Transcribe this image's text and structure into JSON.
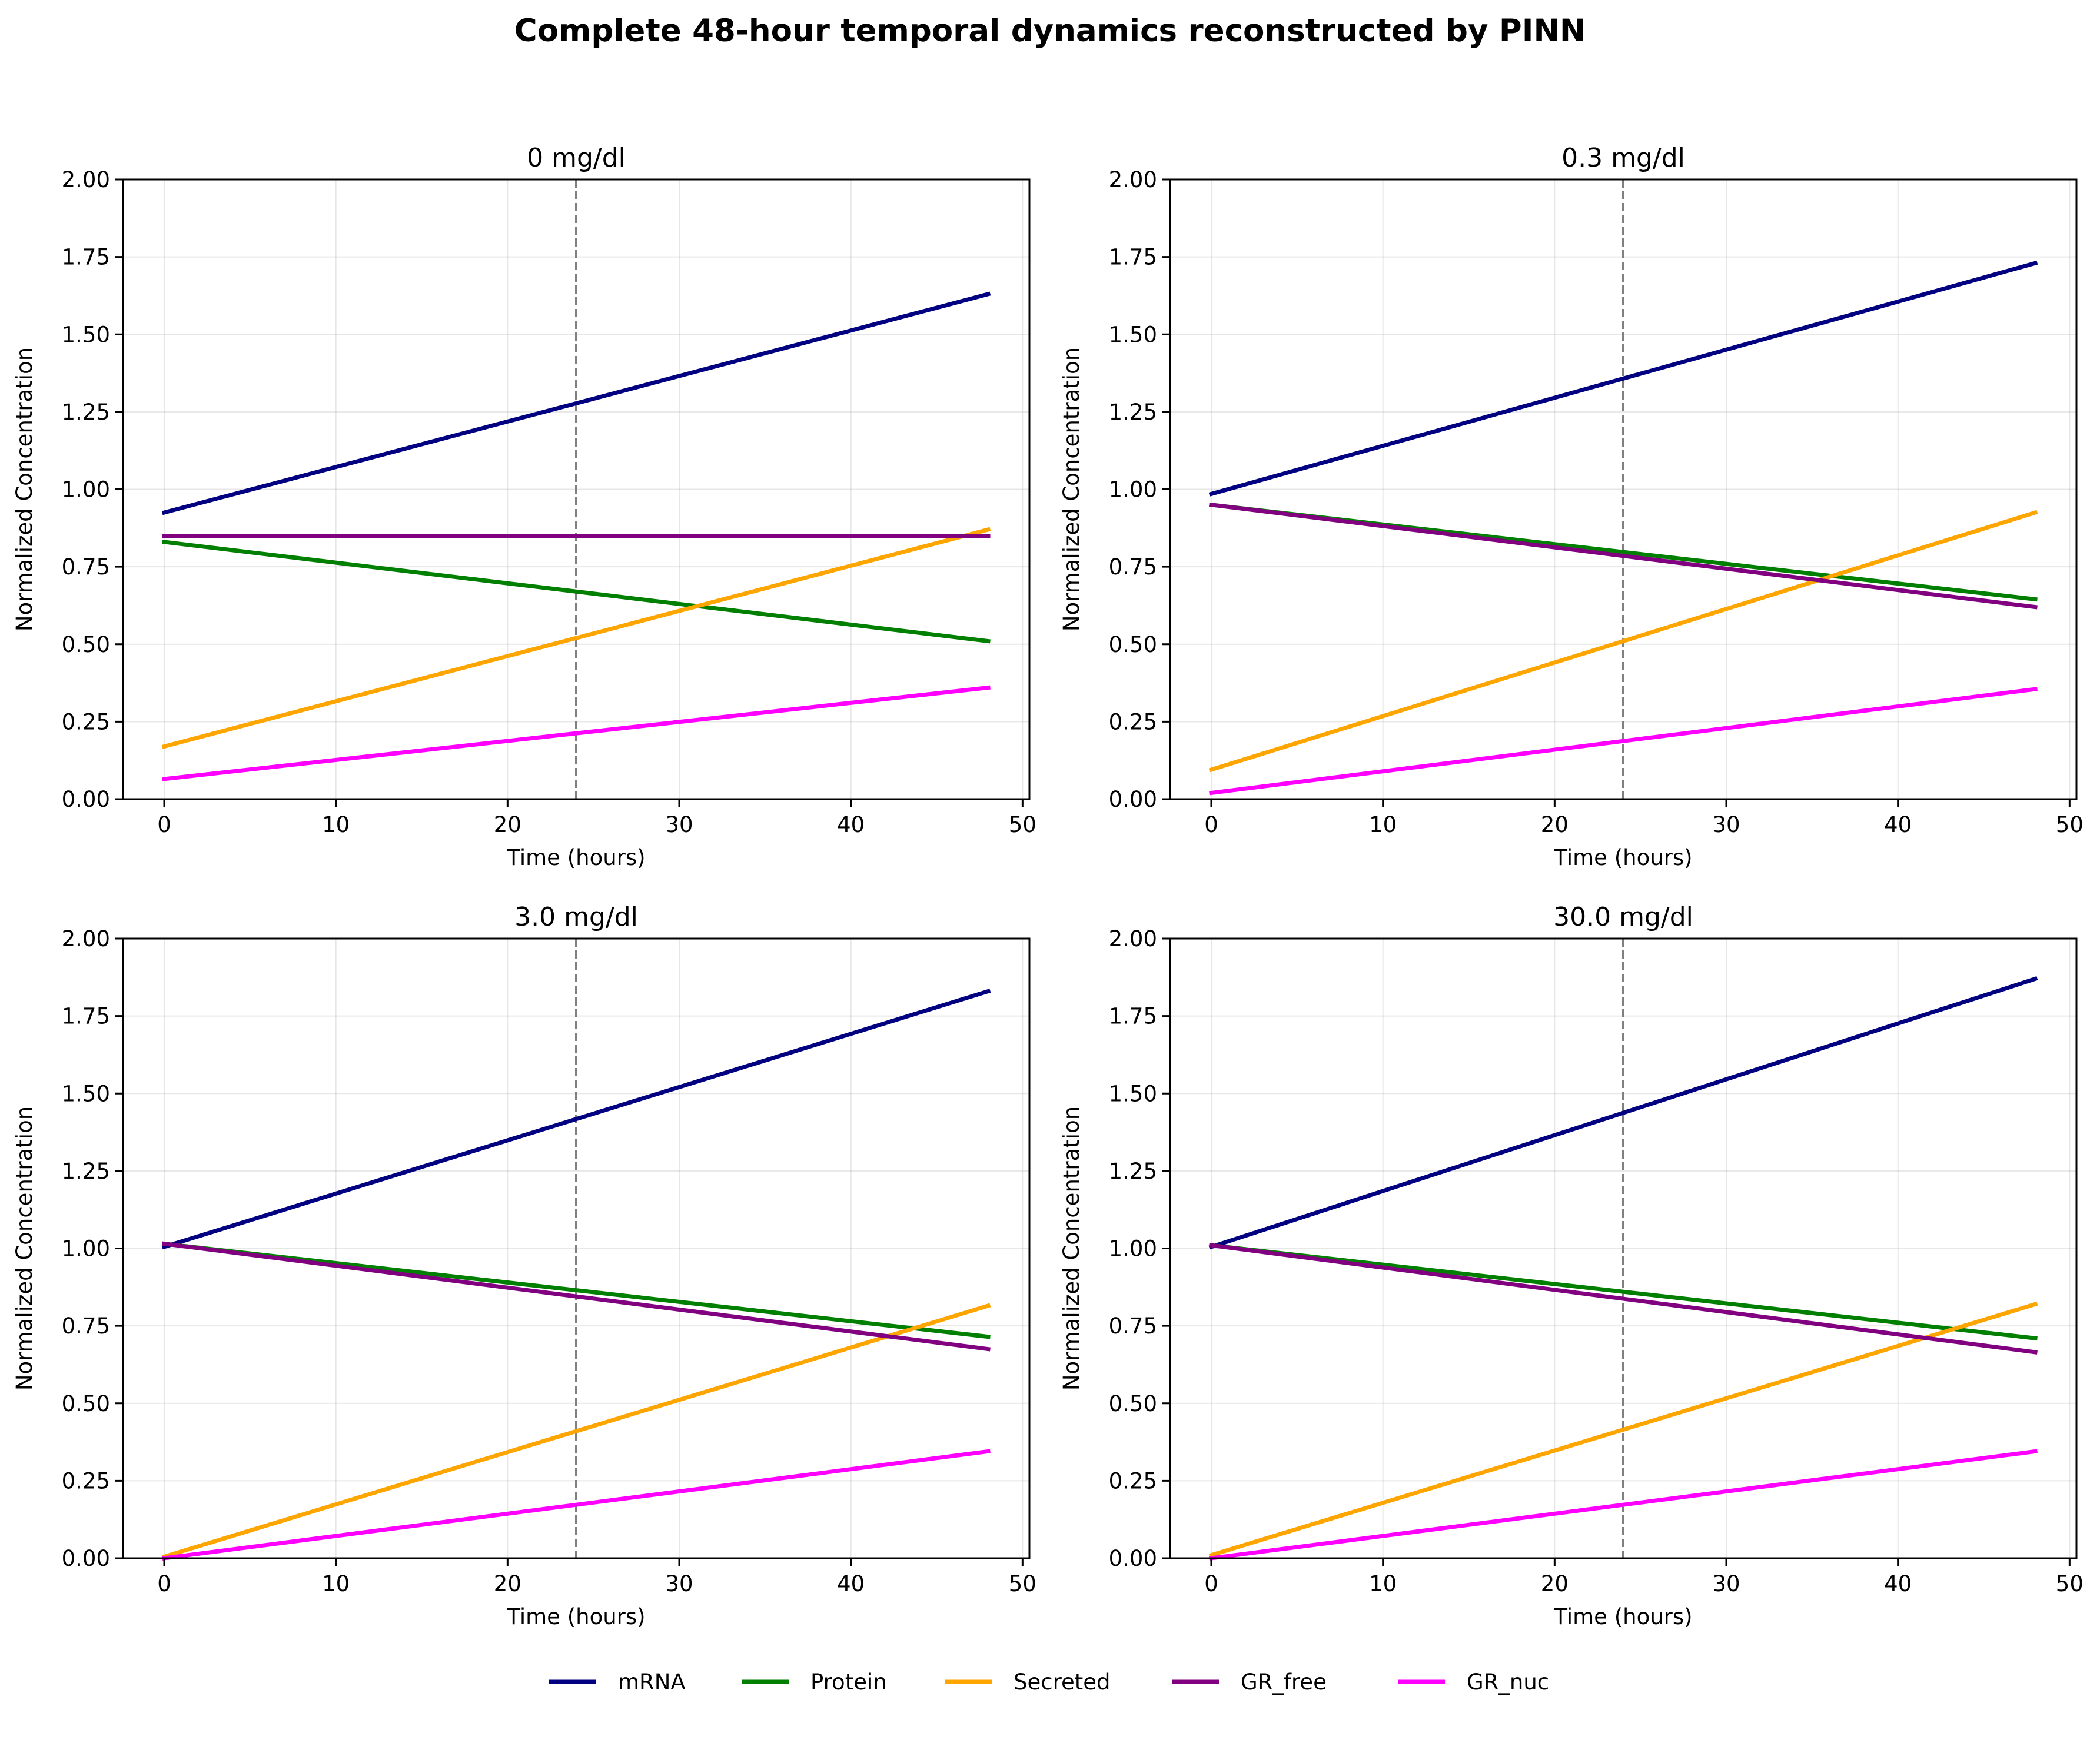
{
  "figure": {
    "title": "Complete 48-hour temporal dynamics reconstructed by PINN"
  },
  "legend": {
    "placement": "bottom-center",
    "entries": [
      {
        "name": "mRNA",
        "color": "#000080"
      },
      {
        "name": "Protein",
        "color": "#007f00"
      },
      {
        "name": "Secreted",
        "color": "#ffa500"
      },
      {
        "name": "GR_free",
        "color": "#800080"
      },
      {
        "name": "GR_nuc",
        "color": "#ff00ff"
      }
    ]
  },
  "chart_data": [
    {
      "type": "line",
      "title": "0 mg/dl",
      "xlabel": "Time (hours)",
      "ylabel": "Normalized Concentration",
      "xlim": [
        -2.4,
        50.4
      ],
      "ylim": [
        0,
        2.0
      ],
      "xticks": [
        "0",
        "10",
        "20",
        "30",
        "40",
        "50"
      ],
      "yticks": [
        "0.00",
        "0.25",
        "0.50",
        "0.75",
        "1.00",
        "1.25",
        "1.50",
        "1.75",
        "2.00"
      ],
      "grid": true,
      "vline_x": 24,
      "x": [
        0,
        48
      ],
      "series": [
        {
          "name": "mRNA",
          "color": "#000080",
          "values": [
            0.925,
            1.63
          ]
        },
        {
          "name": "Protein",
          "color": "#007f00",
          "values": [
            0.83,
            0.51
          ]
        },
        {
          "name": "Secreted",
          "color": "#ffa500",
          "values": [
            0.17,
            0.87
          ]
        },
        {
          "name": "GR_free",
          "color": "#800080",
          "values": [
            0.85,
            0.85
          ]
        },
        {
          "name": "GR_nuc",
          "color": "#ff00ff",
          "values": [
            0.065,
            0.36
          ]
        }
      ]
    },
    {
      "type": "line",
      "title": "0.3 mg/dl",
      "xlabel": "Time (hours)",
      "ylabel": "Normalized Concentration",
      "xlim": [
        -2.4,
        50.4
      ],
      "ylim": [
        0,
        2.0
      ],
      "xticks": [
        "0",
        "10",
        "20",
        "30",
        "40",
        "50"
      ],
      "yticks": [
        "0.00",
        "0.25",
        "0.50",
        "0.75",
        "1.00",
        "1.25",
        "1.50",
        "1.75",
        "2.00"
      ],
      "grid": true,
      "vline_x": 24,
      "x": [
        0,
        48
      ],
      "series": [
        {
          "name": "mRNA",
          "color": "#000080",
          "values": [
            0.985,
            1.73
          ]
        },
        {
          "name": "Protein",
          "color": "#007f00",
          "values": [
            0.95,
            0.645
          ]
        },
        {
          "name": "Secreted",
          "color": "#ffa500",
          "values": [
            0.095,
            0.925
          ]
        },
        {
          "name": "GR_free",
          "color": "#800080",
          "values": [
            0.95,
            0.62
          ]
        },
        {
          "name": "GR_nuc",
          "color": "#ff00ff",
          "values": [
            0.02,
            0.355
          ]
        }
      ]
    },
    {
      "type": "line",
      "title": "3.0 mg/dl",
      "xlabel": "Time (hours)",
      "ylabel": "Normalized Concentration",
      "xlim": [
        -2.4,
        50.4
      ],
      "ylim": [
        0,
        2.0
      ],
      "xticks": [
        "0",
        "10",
        "20",
        "30",
        "40",
        "50"
      ],
      "yticks": [
        "0.00",
        "0.25",
        "0.50",
        "0.75",
        "1.00",
        "1.25",
        "1.50",
        "1.75",
        "2.00"
      ],
      "grid": true,
      "vline_x": 24,
      "x": [
        0,
        48
      ],
      "series": [
        {
          "name": "mRNA",
          "color": "#000080",
          "values": [
            1.005,
            1.83
          ]
        },
        {
          "name": "Protein",
          "color": "#007f00",
          "values": [
            1.015,
            0.715
          ]
        },
        {
          "name": "Secreted",
          "color": "#ffa500",
          "values": [
            0.005,
            0.815
          ]
        },
        {
          "name": "GR_free",
          "color": "#800080",
          "values": [
            1.015,
            0.675
          ]
        },
        {
          "name": "GR_nuc",
          "color": "#ff00ff",
          "values": [
            0.0,
            0.345
          ]
        }
      ]
    },
    {
      "type": "line",
      "title": "30.0 mg/dl",
      "xlabel": "Time (hours)",
      "ylabel": "Normalized Concentration",
      "xlim": [
        -2.4,
        50.4
      ],
      "ylim": [
        0,
        2.0
      ],
      "xticks": [
        "0",
        "10",
        "20",
        "30",
        "40",
        "50"
      ],
      "yticks": [
        "0.00",
        "0.25",
        "0.50",
        "0.75",
        "1.00",
        "1.25",
        "1.50",
        "1.75",
        "2.00"
      ],
      "grid": true,
      "vline_x": 24,
      "x": [
        0,
        48
      ],
      "series": [
        {
          "name": "mRNA",
          "color": "#000080",
          "values": [
            1.005,
            1.87
          ]
        },
        {
          "name": "Protein",
          "color": "#007f00",
          "values": [
            1.01,
            0.71
          ]
        },
        {
          "name": "Secreted",
          "color": "#ffa500",
          "values": [
            0.01,
            0.82
          ]
        },
        {
          "name": "GR_free",
          "color": "#800080",
          "values": [
            1.01,
            0.665
          ]
        },
        {
          "name": "GR_nuc",
          "color": "#ff00ff",
          "values": [
            0.0,
            0.345
          ]
        }
      ]
    }
  ]
}
